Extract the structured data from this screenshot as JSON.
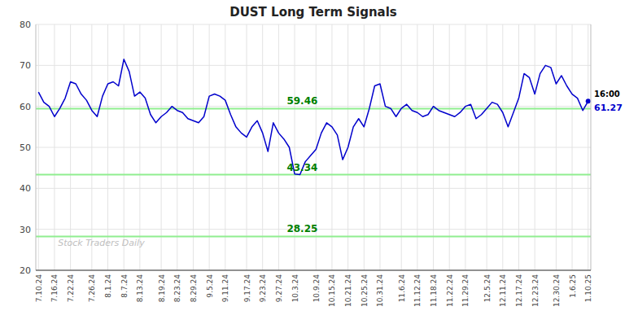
{
  "chart_data": {
    "type": "line",
    "title": "DUST Long Term Signals",
    "categories": [
      "7.10.24",
      null,
      null,
      "7.16.24",
      null,
      null,
      "7.22.24",
      null,
      null,
      null,
      "7.26.24",
      null,
      null,
      "8.1.24",
      null,
      null,
      "8.7.24",
      null,
      null,
      "8.13.24",
      null,
      null,
      null,
      "8.19.24",
      null,
      null,
      "8.23.24",
      null,
      null,
      "8.29.24",
      null,
      null,
      "9.5.24",
      null,
      null,
      "9.11.24",
      null,
      null,
      null,
      "9.17.24",
      null,
      null,
      "9.23.24",
      null,
      null,
      "9.27.24",
      null,
      null,
      "10.3.24",
      null,
      null,
      null,
      "10.9.24",
      null,
      null,
      "10.15.24",
      null,
      null,
      "10.21.24",
      null,
      null,
      "10.25.24",
      null,
      null,
      "10.31.24",
      null,
      null,
      null,
      "11.6.24",
      null,
      null,
      "11.12.24",
      null,
      null,
      "11.18.24",
      null,
      null,
      "11.22.24",
      null,
      null,
      "11.29.24",
      null,
      null,
      null,
      "12.5.24",
      null,
      null,
      "12.11.24",
      null,
      null,
      "12.17.24",
      null,
      null,
      "12.23.24",
      null,
      null,
      null,
      "12.30.24",
      null,
      null,
      "1.6.25",
      null,
      null,
      "1.10.25"
    ],
    "series": [
      {
        "color": "#0000cc",
        "values": [
          63.5,
          61.0,
          60.0,
          57.5,
          59.5,
          62.0,
          66.0,
          65.5,
          63.0,
          61.5,
          59.0,
          57.5,
          62.5,
          65.5,
          66.0,
          65.0,
          71.5,
          68.5,
          62.5,
          63.5,
          62.0,
          58.0,
          56.0,
          57.5,
          58.5,
          60.0,
          59.0,
          58.5,
          57.0,
          56.5,
          56.0,
          57.5,
          62.5,
          63.0,
          62.5,
          61.5,
          58.0,
          55.0,
          53.5,
          52.5,
          55.0,
          56.5,
          53.5,
          49.0,
          56.0,
          53.5,
          52.0,
          50.0,
          43.5,
          43.34,
          46.5,
          48.0,
          49.5,
          53.5,
          56.0,
          55.0,
          53.0,
          47.0,
          50.0,
          55.0,
          57.0,
          55.0,
          59.5,
          65.0,
          65.5,
          60.0,
          59.5,
          57.5,
          59.5,
          60.5,
          59.0,
          58.5,
          57.5,
          58.0,
          60.0,
          59.0,
          58.5,
          58.0,
          57.5,
          58.5,
          60.0,
          60.5,
          57.0,
          58.0,
          59.5,
          61.0,
          60.5,
          58.5,
          55.0,
          58.5,
          62.0,
          68.0,
          67.0,
          63.0,
          68.0,
          70.0,
          69.5,
          65.5,
          67.5,
          65.0,
          63.0,
          62.0,
          59.0,
          61.27
        ]
      }
    ],
    "ylim": [
      20,
      80
    ],
    "yticks": [
      20,
      30,
      40,
      50,
      60,
      70,
      80
    ],
    "grid": true,
    "reference_lines": [
      {
        "value": 59.46,
        "color": "#90ee90"
      },
      {
        "value": 43.34,
        "color": "#90ee90"
      },
      {
        "value": 28.25,
        "color": "#90ee90"
      }
    ],
    "annotations": [
      {
        "text": "59.46",
        "y": 59.46
      },
      {
        "text": "43.34",
        "y": 43.34
      },
      {
        "text": "28.25",
        "y": 28.25
      }
    ],
    "watermark": "Stock Traders Daily",
    "end_labels": [
      "16:00",
      "61.27"
    ]
  }
}
